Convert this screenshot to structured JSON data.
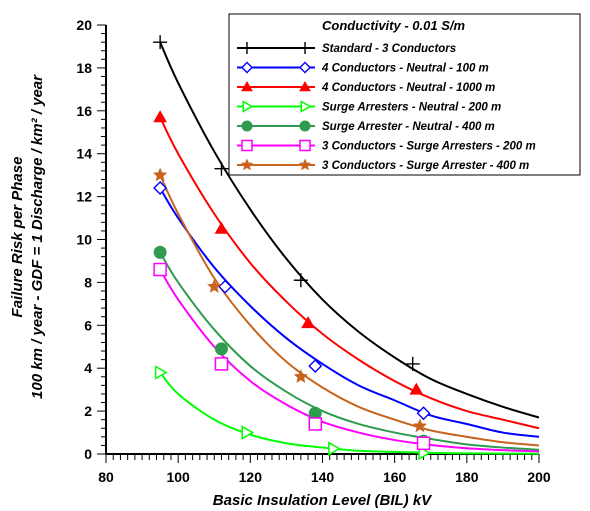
{
  "chart_data": {
    "type": "line",
    "title": "",
    "xlabel": "Basic Insulation Level (BIL) kV",
    "ylabel_line1": "Failure Risk per Phase",
    "ylabel_line2": "100 km / year - GDF = 1 Discharge / km² / year",
    "xlim": [
      80,
      200
    ],
    "ylim": [
      0,
      20
    ],
    "xticks": [
      80,
      100,
      120,
      140,
      160,
      180,
      200
    ],
    "yticks": [
      0,
      2,
      4,
      6,
      8,
      10,
      12,
      14,
      16,
      18,
      20
    ],
    "grid": false,
    "legend_position": "top-right",
    "legend_title": "Conductivity  - 0.01 S/m",
    "series": [
      {
        "name": "Standard  -  3 Conductors",
        "color": "#000000",
        "marker": "plus",
        "curve": [
          [
            95,
            19.2
          ],
          [
            100,
            17.3
          ],
          [
            110,
            14.1
          ],
          [
            120,
            11.4
          ],
          [
            130,
            9.1
          ],
          [
            140,
            7.2
          ],
          [
            150,
            5.7
          ],
          [
            160,
            4.5
          ],
          [
            170,
            3.5
          ],
          [
            180,
            2.8
          ],
          [
            190,
            2.2
          ],
          [
            200,
            1.7
          ]
        ],
        "markers": [
          [
            95,
            19.2
          ],
          [
            112,
            13.3
          ],
          [
            134,
            8.1
          ],
          [
            165,
            4.2
          ]
        ]
      },
      {
        "name": "4 Conductors - Neutral - 100 m",
        "color": "#0000ff",
        "marker": "diamond",
        "curve": [
          [
            95,
            12.4
          ],
          [
            100,
            11.0
          ],
          [
            110,
            8.7
          ],
          [
            120,
            6.9
          ],
          [
            130,
            5.4
          ],
          [
            140,
            4.2
          ],
          [
            150,
            3.2
          ],
          [
            160,
            2.5
          ],
          [
            170,
            1.8
          ],
          [
            180,
            1.4
          ],
          [
            190,
            1.0
          ],
          [
            200,
            0.8
          ]
        ],
        "markers": [
          [
            95,
            12.4
          ],
          [
            113,
            7.8
          ],
          [
            138,
            4.1
          ],
          [
            168,
            1.9
          ]
        ]
      },
      {
        "name": "4 Conductors - Neutral - 1000 m",
        "color": "#ff0000",
        "marker": "triangle-up",
        "curve": [
          [
            95,
            15.7
          ],
          [
            100,
            14.0
          ],
          [
            110,
            11.2
          ],
          [
            120,
            8.9
          ],
          [
            130,
            7.1
          ],
          [
            140,
            5.6
          ],
          [
            150,
            4.4
          ],
          [
            160,
            3.4
          ],
          [
            170,
            2.6
          ],
          [
            180,
            2.0
          ],
          [
            190,
            1.6
          ],
          [
            200,
            1.2
          ]
        ],
        "markers": [
          [
            95,
            15.7
          ],
          [
            112,
            10.5
          ],
          [
            136,
            6.1
          ],
          [
            166,
            3.0
          ]
        ]
      },
      {
        "name": "Surge Arresters - Neutral - 200 m",
        "color": "#00ff00",
        "marker": "triangle-right",
        "curve": [
          [
            95,
            3.8
          ],
          [
            100,
            2.8
          ],
          [
            110,
            1.6
          ],
          [
            120,
            0.9
          ],
          [
            130,
            0.5
          ],
          [
            140,
            0.3
          ],
          [
            150,
            0.15
          ],
          [
            160,
            0.1
          ],
          [
            170,
            0.05
          ],
          [
            180,
            0.03
          ],
          [
            190,
            0.02
          ],
          [
            200,
            0.01
          ]
        ],
        "markers": [
          [
            95,
            3.8
          ],
          [
            119,
            1.0
          ],
          [
            143,
            0.25
          ],
          [
            168,
            0.05
          ]
        ]
      },
      {
        "name": "Surge Arrester - Neutral - 400 m",
        "color": "#2e9b4e",
        "marker": "circle",
        "curve": [
          [
            95,
            9.4
          ],
          [
            100,
            8.0
          ],
          [
            110,
            5.8
          ],
          [
            120,
            4.1
          ],
          [
            130,
            2.9
          ],
          [
            140,
            2.0
          ],
          [
            150,
            1.4
          ],
          [
            160,
            1.0
          ],
          [
            170,
            0.7
          ],
          [
            180,
            0.45
          ],
          [
            190,
            0.3
          ],
          [
            200,
            0.2
          ]
        ],
        "markers": [
          [
            95,
            9.4
          ],
          [
            112,
            4.9
          ],
          [
            138,
            1.9
          ],
          [
            168,
            0.6
          ]
        ]
      },
      {
        "name": "3 Conductors - Surge Arresters - 200 m",
        "color": "#ff00ff",
        "marker": "square",
        "curve": [
          [
            95,
            8.6
          ],
          [
            100,
            7.2
          ],
          [
            110,
            5.0
          ],
          [
            120,
            3.4
          ],
          [
            130,
            2.3
          ],
          [
            140,
            1.5
          ],
          [
            150,
            1.0
          ],
          [
            160,
            0.65
          ],
          [
            170,
            0.42
          ],
          [
            180,
            0.27
          ],
          [
            190,
            0.18
          ],
          [
            200,
            0.12
          ]
        ],
        "markers": [
          [
            95,
            8.6
          ],
          [
            112,
            4.2
          ],
          [
            138,
            1.4
          ],
          [
            168,
            0.5
          ]
        ]
      },
      {
        "name": "3 Conductors - Surge Arrester - 400 m",
        "color": "#c8641e",
        "marker": "star",
        "curve": [
          [
            95,
            13.0
          ],
          [
            100,
            11.2
          ],
          [
            110,
            8.2
          ],
          [
            120,
            6.0
          ],
          [
            130,
            4.3
          ],
          [
            140,
            3.1
          ],
          [
            150,
            2.2
          ],
          [
            160,
            1.6
          ],
          [
            170,
            1.1
          ],
          [
            180,
            0.8
          ],
          [
            190,
            0.55
          ],
          [
            200,
            0.4
          ]
        ],
        "markers": [
          [
            95,
            13.0
          ],
          [
            110,
            7.8
          ],
          [
            134,
            3.6
          ],
          [
            167,
            1.3
          ]
        ]
      }
    ]
  }
}
